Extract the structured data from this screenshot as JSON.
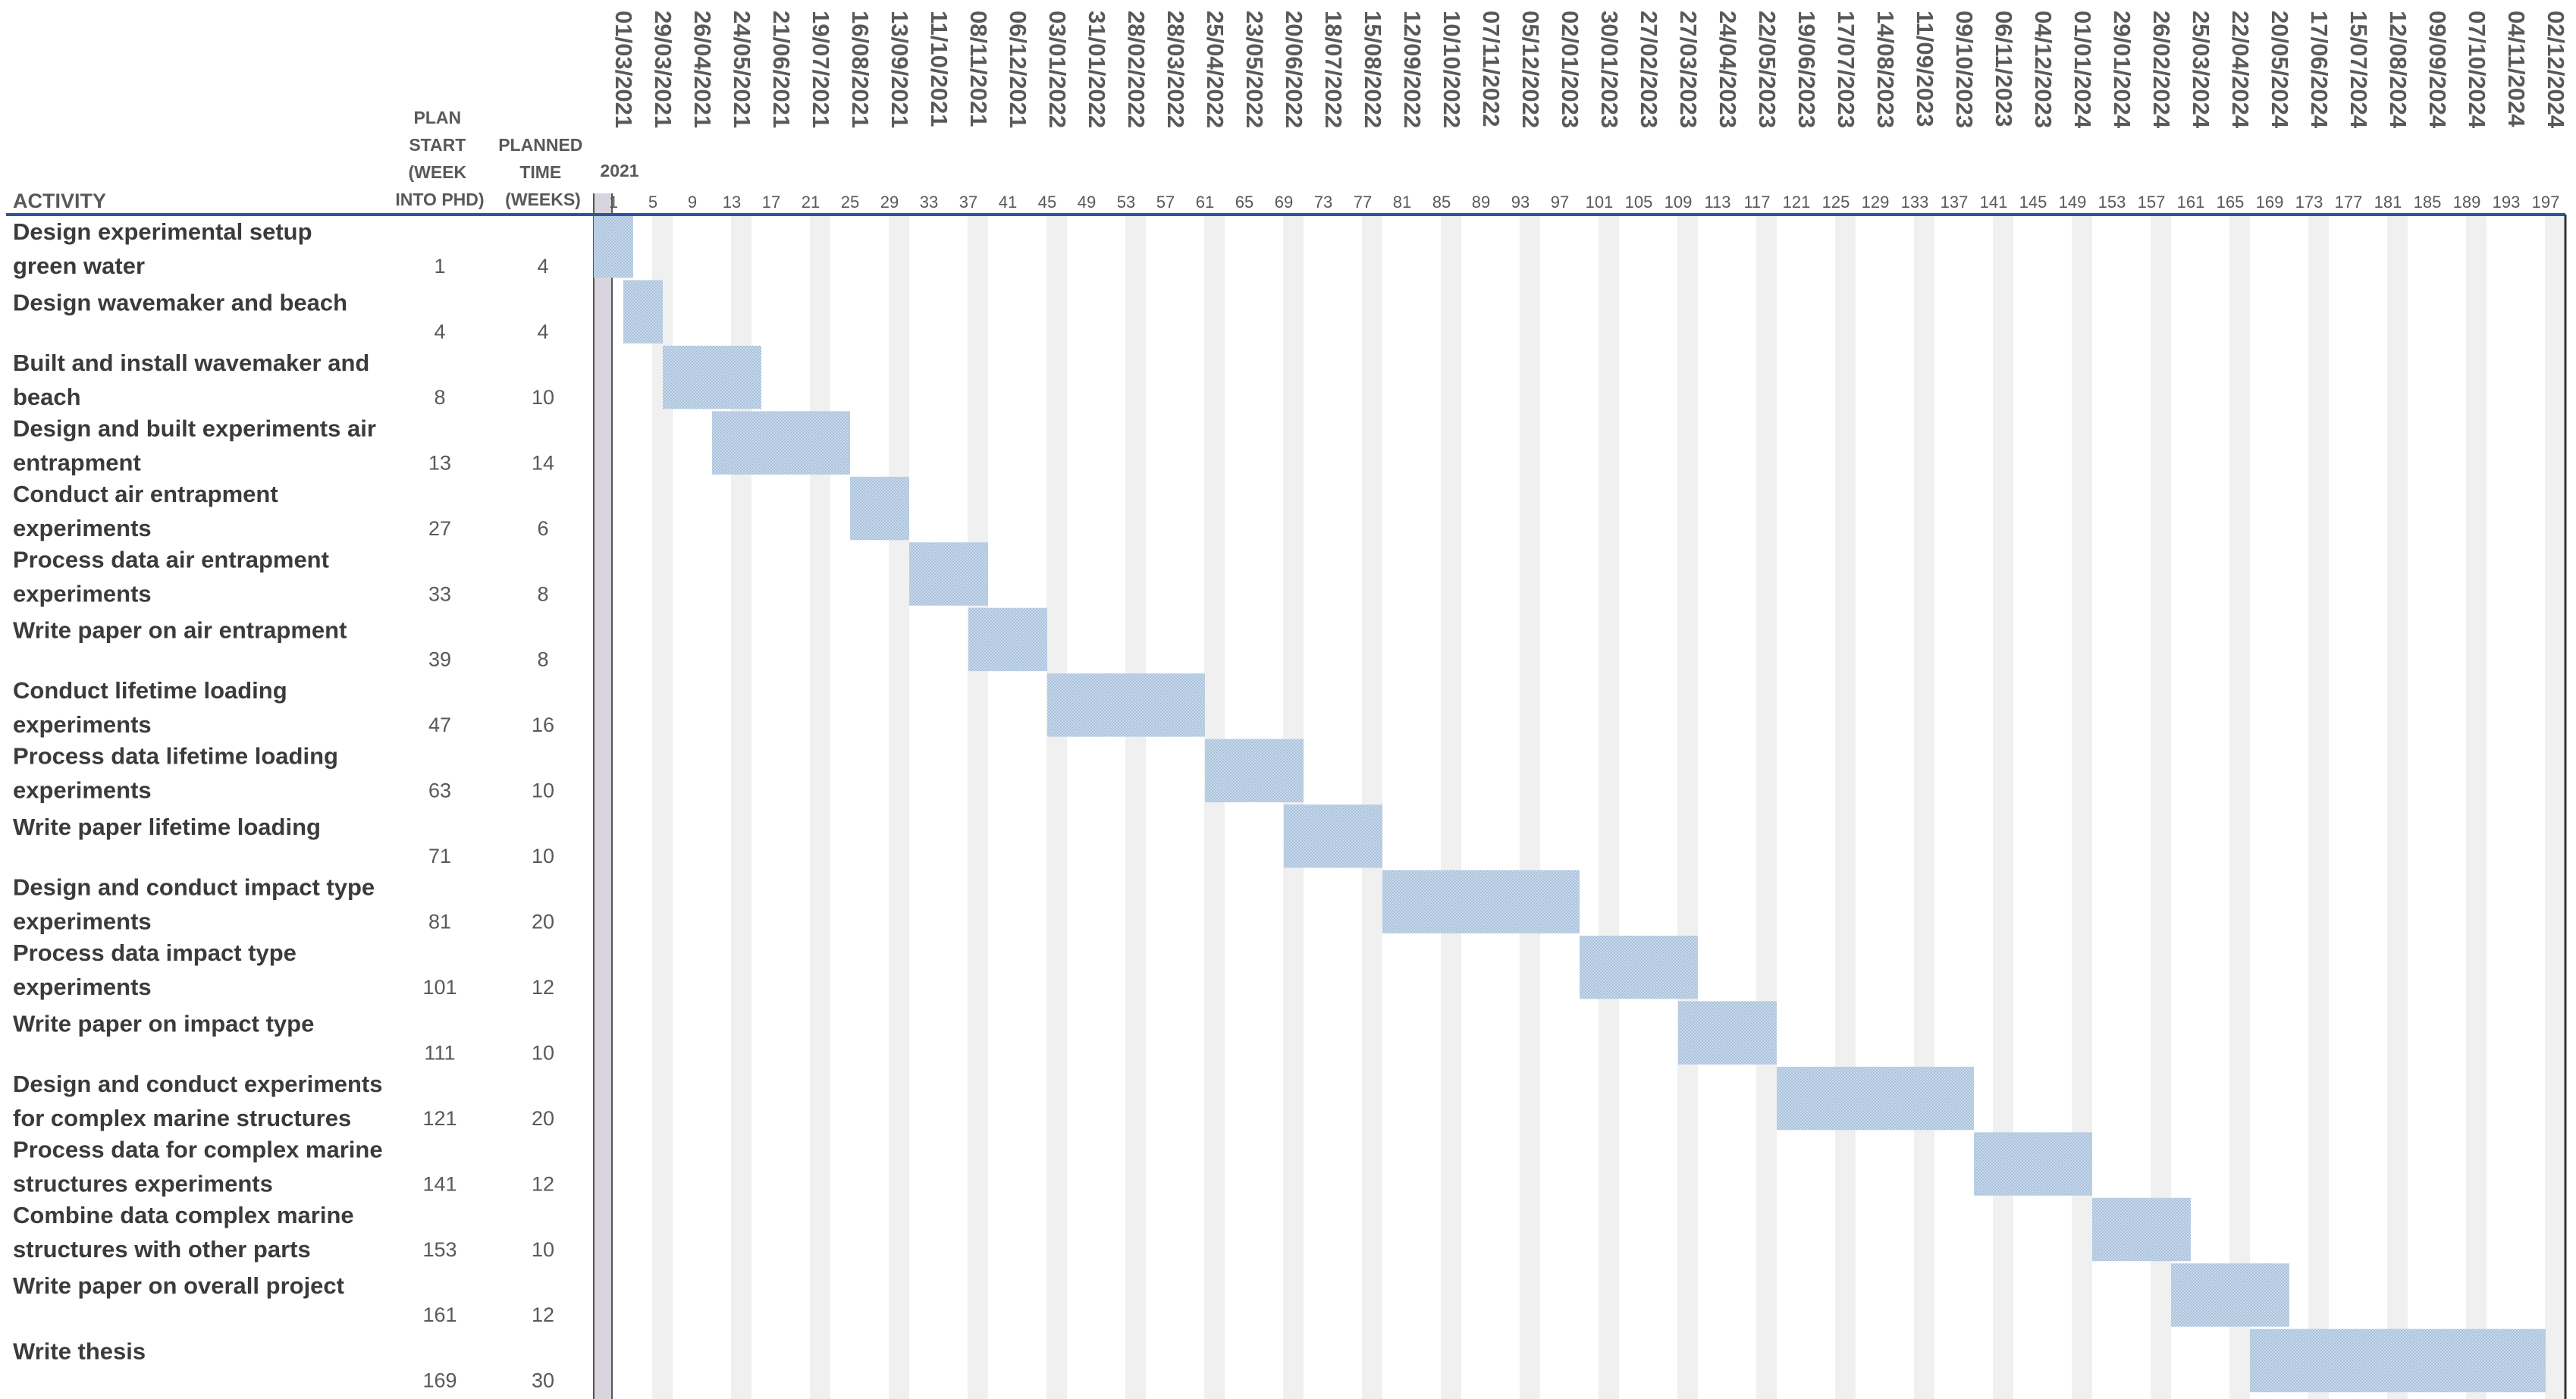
{
  "chart_data": {
    "type": "gantt",
    "headers": {
      "activity": "ACTIVITY",
      "plan_start_lines": [
        "PLAN",
        "START",
        "(WEEK",
        "INTO PHD)"
      ],
      "planned_time_lines": [
        "PLANNED",
        "TIME",
        "(WEEKS)"
      ],
      "year": "2021"
    },
    "highlight_week": 1,
    "week_numbers": [
      1,
      5,
      9,
      13,
      17,
      21,
      25,
      29,
      33,
      37,
      41,
      45,
      49,
      53,
      57,
      61,
      65,
      69,
      73,
      77,
      81,
      85,
      89,
      93,
      97,
      101,
      105,
      109,
      113,
      117,
      121,
      125,
      129,
      133,
      137,
      141,
      145,
      149,
      153,
      157,
      161,
      165,
      169,
      173,
      177,
      181,
      185,
      189,
      193,
      197
    ],
    "dates": [
      "01/03/2021",
      "29/03/2021",
      "26/04/2021",
      "24/05/2021",
      "21/06/2021",
      "19/07/2021",
      "16/08/2021",
      "13/09/2021",
      "11/10/2021",
      "08/11/2021",
      "06/12/2021",
      "03/01/2022",
      "31/01/2022",
      "28/02/2022",
      "28/03/2022",
      "25/04/2022",
      "23/05/2022",
      "20/06/2022",
      "18/07/2022",
      "15/08/2022",
      "12/09/2022",
      "10/10/2022",
      "07/11/2022",
      "05/12/2022",
      "02/01/2023",
      "30/01/2023",
      "27/02/2023",
      "27/03/2023",
      "24/04/2023",
      "22/05/2023",
      "19/06/2023",
      "17/07/2023",
      "14/08/2023",
      "11/09/2023",
      "09/10/2023",
      "06/11/2023",
      "04/12/2023",
      "01/01/2024",
      "29/01/2024",
      "26/02/2024",
      "25/03/2024",
      "22/04/2024",
      "20/05/2024",
      "17/06/2024",
      "15/07/2024",
      "12/08/2024",
      "09/09/2024",
      "07/10/2024",
      "04/11/2024",
      "02/12/2024"
    ],
    "tasks": [
      {
        "lines": [
          "Design experimental setup",
          "green water"
        ],
        "start": 1,
        "duration": 4
      },
      {
        "lines": [
          "Design wavemaker and beach"
        ],
        "start": 4,
        "duration": 4
      },
      {
        "lines": [
          "Built and install wavemaker and",
          "beach"
        ],
        "start": 8,
        "duration": 10
      },
      {
        "lines": [
          "Design and built experiments air",
          "entrapment"
        ],
        "start": 13,
        "duration": 14
      },
      {
        "lines": [
          "Conduct air entrapment",
          "experiments"
        ],
        "start": 27,
        "duration": 6
      },
      {
        "lines": [
          "Process data air entrapment",
          "experiments"
        ],
        "start": 33,
        "duration": 8
      },
      {
        "lines": [
          "Write paper on air entrapment"
        ],
        "start": 39,
        "duration": 8
      },
      {
        "lines": [
          "Conduct lifetime loading",
          "experiments"
        ],
        "start": 47,
        "duration": 16
      },
      {
        "lines": [
          "Process data lifetime loading",
          "experiments"
        ],
        "start": 63,
        "duration": 10
      },
      {
        "lines": [
          "Write paper lifetime loading"
        ],
        "start": 71,
        "duration": 10
      },
      {
        "lines": [
          "Design and conduct impact type",
          "experiments"
        ],
        "start": 81,
        "duration": 20
      },
      {
        "lines": [
          "Process data impact type",
          "experiments"
        ],
        "start": 101,
        "duration": 12
      },
      {
        "lines": [
          "Write paper on impact type"
        ],
        "start": 111,
        "duration": 10
      },
      {
        "lines": [
          "Design and conduct experiments",
          "for complex marine structures"
        ],
        "start": 121,
        "duration": 20
      },
      {
        "lines": [
          "Process data for complex marine",
          "structures experiments"
        ],
        "start": 141,
        "duration": 12
      },
      {
        "lines": [
          "Combine data complex marine",
          "structures with other parts"
        ],
        "start": 153,
        "duration": 10
      },
      {
        "lines": [
          "Write paper on overall project"
        ],
        "start": 161,
        "duration": 12
      },
      {
        "lines": [
          "Write thesis"
        ],
        "start": 169,
        "duration": 30
      }
    ],
    "colors": {
      "bar": "#c9d9ea",
      "bar_dot": "#a9c2dc",
      "stripe": "#f0f0f0",
      "highlight": "#d9d5de",
      "border": "#2f5597",
      "text": "#595959"
    }
  }
}
